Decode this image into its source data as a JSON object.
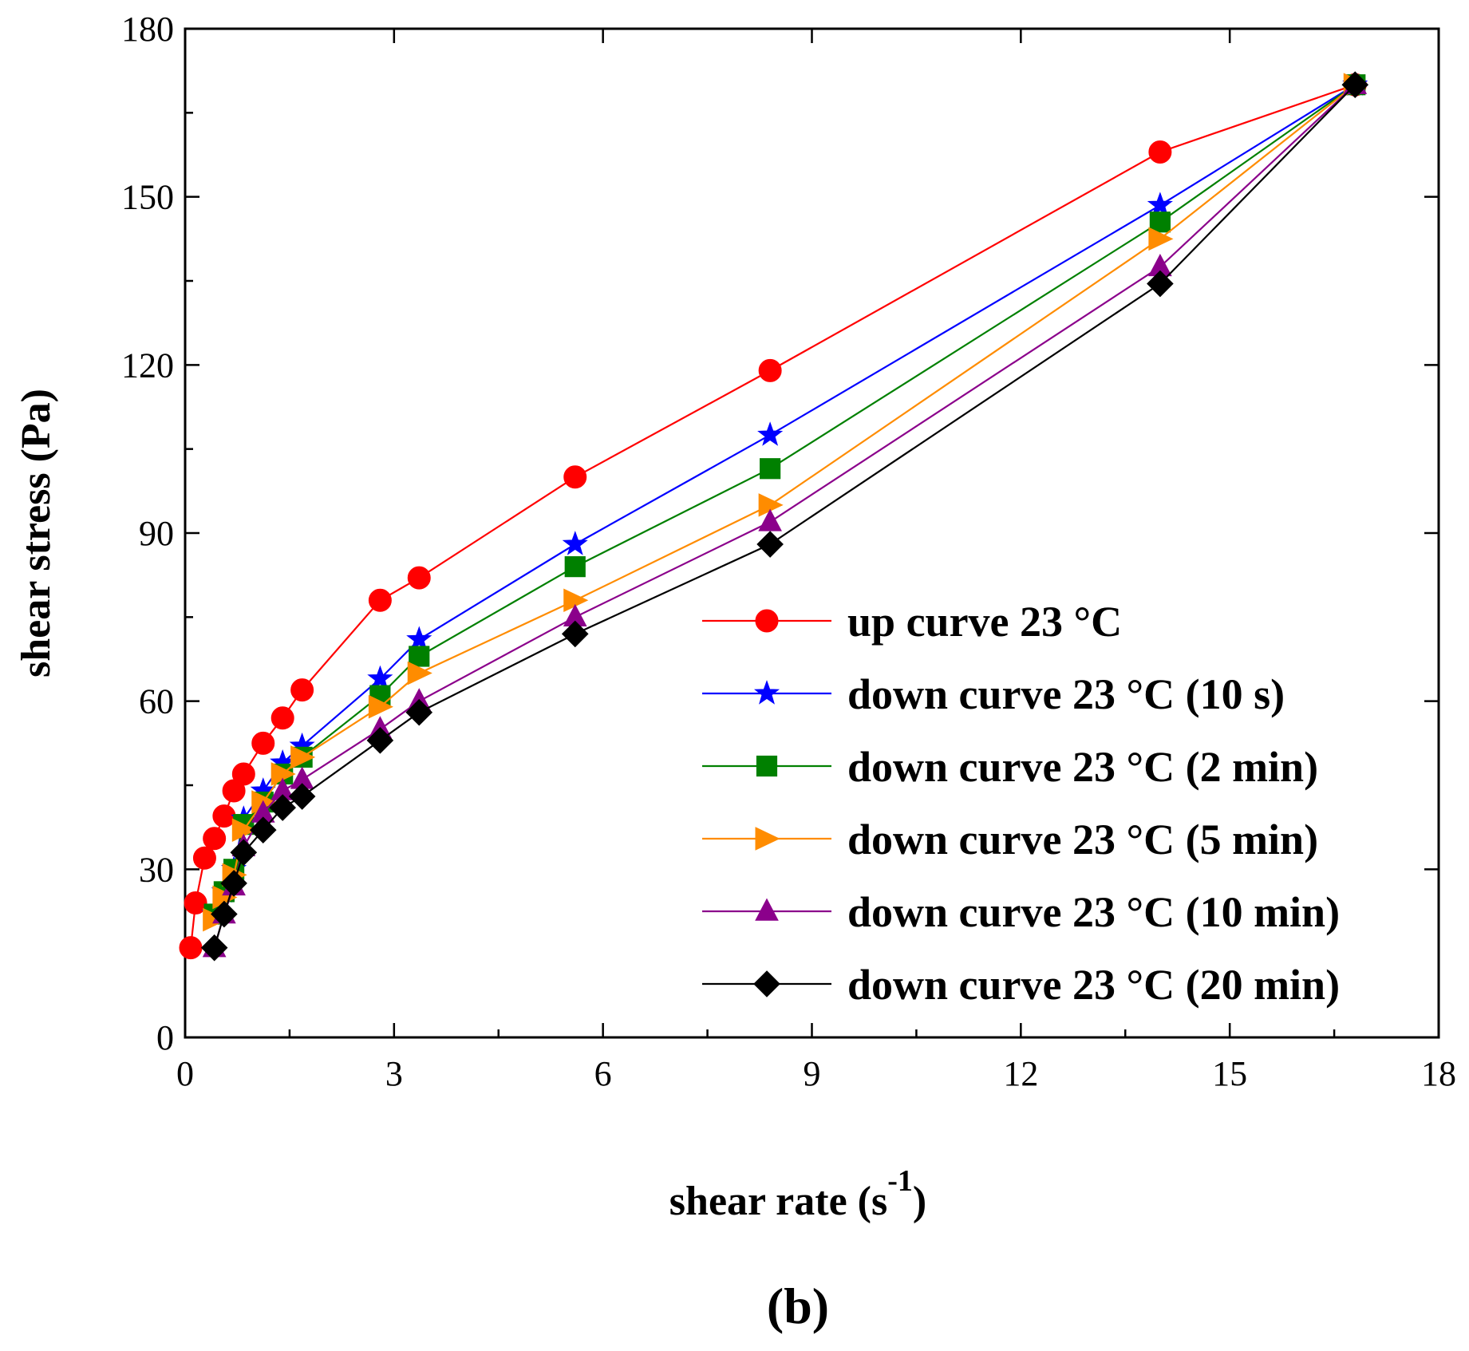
{
  "chart_data": {
    "type": "line",
    "xlabel": "shear rate (s",
    "xlabel_sup": "-1",
    "xlabel_close": ")",
    "ylabel": "shear stress (Pa)",
    "panel_label": "(b)",
    "xlim": [
      0,
      18
    ],
    "ylim": [
      0,
      180
    ],
    "xticks": [
      0,
      3,
      6,
      9,
      12,
      15,
      18
    ],
    "yticks": [
      0,
      30,
      60,
      90,
      120,
      150,
      180
    ],
    "legend_position": "bottom-right",
    "series": [
      {
        "name": "up curve 23 °C",
        "color": "#ff0000",
        "marker": "circle",
        "x": [
          0.08,
          0.15,
          0.28,
          0.42,
          0.56,
          0.7,
          0.84,
          1.12,
          1.4,
          1.68,
          2.8,
          3.36,
          5.6,
          8.4,
          14.0,
          16.8
        ],
        "y": [
          16,
          24,
          32,
          35.5,
          39.5,
          44,
          47,
          52.5,
          57,
          62,
          78,
          82,
          100,
          119,
          158,
          170
        ]
      },
      {
        "name": "down curve 23 °C (10 s)",
        "color": "#0000ff",
        "marker": "star",
        "x": [
          0.42,
          0.56,
          0.7,
          0.84,
          1.12,
          1.4,
          1.68,
          2.8,
          3.36,
          5.6,
          8.4,
          14.0,
          16.8
        ],
        "y": [
          22,
          26,
          30,
          39,
          44,
          49,
          52,
          64,
          71,
          88,
          107.5,
          148.5,
          170
        ]
      },
      {
        "name": "down curve 23 °C (2 min)",
        "color": "#008000",
        "marker": "square",
        "x": [
          0.42,
          0.56,
          0.7,
          0.84,
          1.12,
          1.4,
          1.68,
          2.8,
          3.36,
          5.6,
          8.4,
          14.0,
          16.8
        ],
        "y": [
          22,
          26,
          30,
          38,
          42,
          47,
          50,
          61,
          68,
          84,
          101.5,
          145.5,
          170
        ]
      },
      {
        "name": "down curve 23 °C (5 min)",
        "color": "#ff8c00",
        "marker": "triangle-right",
        "x": [
          0.42,
          0.56,
          0.7,
          0.84,
          1.12,
          1.4,
          1.68,
          2.8,
          3.36,
          5.6,
          8.4,
          14.0,
          16.8
        ],
        "y": [
          21,
          25,
          29,
          37,
          42,
          47,
          50,
          59,
          65,
          78,
          95,
          142.5,
          170
        ]
      },
      {
        "name": "down curve 23 °C (10 min)",
        "color": "#8b008b",
        "marker": "triangle-up",
        "x": [
          0.42,
          0.56,
          0.7,
          0.84,
          1.12,
          1.4,
          1.68,
          2.8,
          3.36,
          5.6,
          8.4,
          14.0,
          16.8
        ],
        "y": [
          16,
          22,
          27,
          34,
          40,
          44,
          46,
          55,
          60,
          75,
          92,
          137.5,
          170
        ]
      },
      {
        "name": "down curve 23 °C (20 min)",
        "color": "#000000",
        "marker": "diamond",
        "x": [
          0.42,
          0.56,
          0.7,
          0.84,
          1.12,
          1.4,
          1.68,
          2.8,
          3.36,
          5.6,
          8.4,
          14.0,
          16.8
        ],
        "y": [
          16,
          22,
          27.5,
          33,
          37,
          41,
          43,
          53,
          58,
          72,
          88,
          134.5,
          170
        ]
      }
    ]
  }
}
